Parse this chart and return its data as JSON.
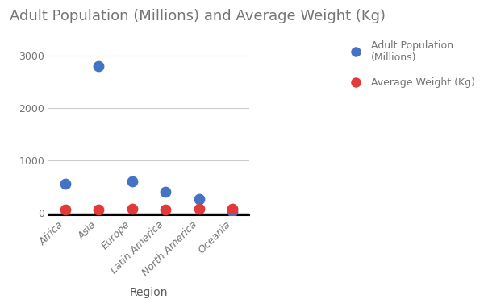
{
  "title": "Adult Population (Millions) and Average Weight (Kg)",
  "xlabel": "Region",
  "ylabel": "",
  "categories": [
    "Africa",
    "Asia",
    "Europe",
    "Latin America",
    "North America",
    "Oceania"
  ],
  "adult_population": [
    550,
    2800,
    600,
    400,
    260,
    30
  ],
  "average_weight": [
    60,
    60,
    70,
    67,
    80,
    70
  ],
  "blue_color": "#4472C4",
  "red_color": "#E03A3A",
  "title_color": "#757575",
  "axis_label_color": "#5a5a5a",
  "tick_color": "#757575",
  "grid_color": "#CCCCCC",
  "background_color": "#FFFFFF",
  "legend_label_pop": "Adult Population\n(Millions)",
  "legend_label_weight": "Average Weight (Kg)",
  "marker_size": 80,
  "ylim": [
    -50,
    3200
  ],
  "yticks": [
    0,
    1000,
    2000,
    3000
  ]
}
